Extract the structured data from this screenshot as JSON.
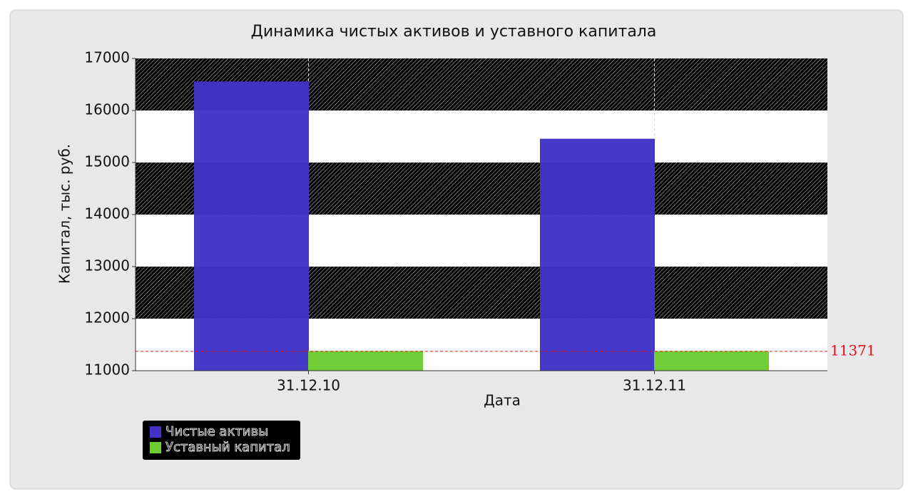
{
  "chart_data": {
    "type": "bar",
    "title": "Динамика чистых активов и уставного капитала",
    "x_label": "Дата",
    "y_label": "Капитал, тыс. руб.",
    "categories": [
      "31.12.10",
      "31.12.11"
    ],
    "series": [
      {
        "name": "Чистые активы",
        "color": "#4133c8",
        "values": [
          16550,
          15450
        ]
      },
      {
        "name": "Уставный капитал",
        "color": "#6ccc33",
        "values": [
          11371,
          11371
        ]
      }
    ],
    "ylim": [
      11000,
      17000
    ],
    "yticks": [
      11000,
      12000,
      13000,
      14000,
      15000,
      16000,
      17000
    ],
    "reference_line": {
      "value": 11371,
      "color": "#e01010"
    },
    "banded_background": true,
    "legend": "bottom-left"
  }
}
